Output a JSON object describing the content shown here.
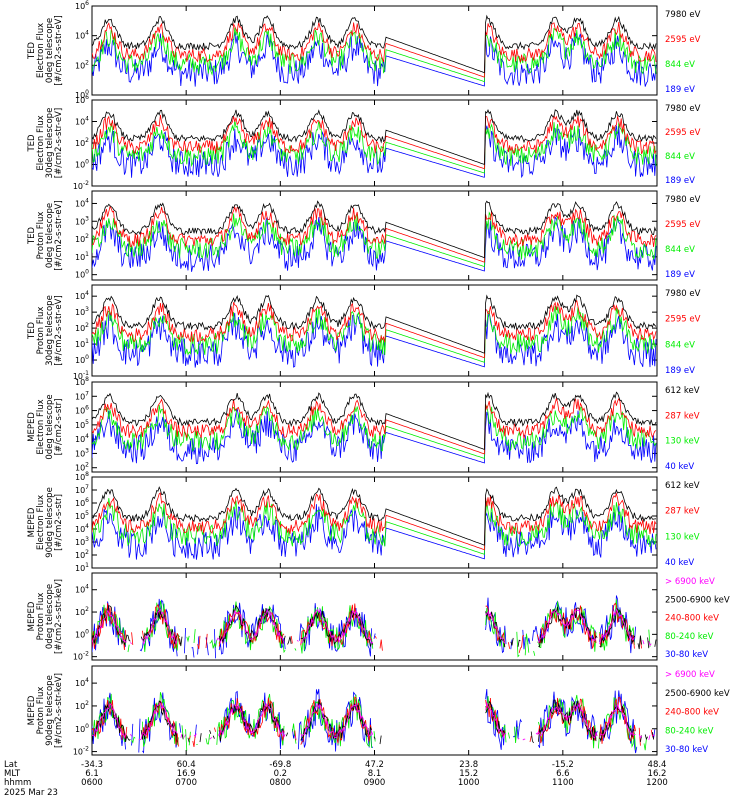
{
  "colors": {
    "black": "#000000",
    "red": "#ff0000",
    "green": "#00ee00",
    "blue": "#0000ff",
    "magenta": "#ff00ff"
  },
  "x_axis": {
    "rows": [
      {
        "label": "Lat",
        "values": [
          "-34.3",
          "60.4",
          "-69.8",
          "47.2",
          "23.8",
          "-15.2",
          "48.4"
        ]
      },
      {
        "label": "MLT",
        "values": [
          "6.1",
          "16.9",
          "0.2",
          "8.1",
          "15.2",
          "6.6",
          "16.2"
        ]
      },
      {
        "label": "hhmm",
        "values": [
          "0600",
          "0700",
          "0800",
          "0900",
          "1000",
          "1100",
          "1200"
        ]
      }
    ],
    "date": "2025 Mar 23",
    "time_range": [
      "0600",
      "1200"
    ]
  },
  "chart_data": [
    {
      "type": "line",
      "ylabel": [
        "TED",
        "Electron Flux",
        "0deg telescope",
        "[#/cm2-s-str-eV]"
      ],
      "yticks": [
        "10^0",
        "10^2",
        "10^4",
        "10^6"
      ],
      "ylog": [
        0,
        6
      ],
      "series": [
        {
          "name": "7980 eV",
          "color": "#000000"
        },
        {
          "name": "2595 eV",
          "color": "#ff0000"
        },
        {
          "name": "844 eV",
          "color": "#00ee00"
        },
        {
          "name": "189 eV",
          "color": "#0000ff"
        }
      ]
    },
    {
      "type": "line",
      "ylabel": [
        "TED",
        "Electron Flux",
        "30deg telescope",
        "[#/cm2-s-str-eV]"
      ],
      "yticks": [
        "10^-2",
        "10^0",
        "10^2",
        "10^4",
        "10^6"
      ],
      "ylog": [
        -2,
        6
      ],
      "series": [
        {
          "name": "7980 eV",
          "color": "#000000"
        },
        {
          "name": "2595 eV",
          "color": "#ff0000"
        },
        {
          "name": "844 eV",
          "color": "#00ee00"
        },
        {
          "name": "189 eV",
          "color": "#0000ff"
        }
      ]
    },
    {
      "type": "line",
      "ylabel": [
        "TED",
        "Proton Flux",
        "0deg telescope",
        "[#/cm2-s-str-eV]"
      ],
      "yticks": [
        "10^0",
        "10^1",
        "10^2",
        "10^3",
        "10^4"
      ],
      "ylog": [
        -0.3,
        4.7
      ],
      "series": [
        {
          "name": "7980 eV",
          "color": "#000000"
        },
        {
          "name": "2595 eV",
          "color": "#ff0000"
        },
        {
          "name": "844 eV",
          "color": "#00ee00"
        },
        {
          "name": "189 eV",
          "color": "#0000ff"
        }
      ]
    },
    {
      "type": "line",
      "ylabel": [
        "TED",
        "Proton Flux",
        "30deg telescope",
        "[#/cm2-s-str-eV]"
      ],
      "yticks": [
        "10^-1",
        "10^0",
        "10^1",
        "10^2",
        "10^3",
        "10^4"
      ],
      "ylog": [
        -1,
        4.7
      ],
      "series": [
        {
          "name": "7980 eV",
          "color": "#000000"
        },
        {
          "name": "2595 eV",
          "color": "#ff0000"
        },
        {
          "name": "844 eV",
          "color": "#00ee00"
        },
        {
          "name": "189 eV",
          "color": "#0000ff"
        }
      ]
    },
    {
      "type": "line",
      "ylabel": [
        "MEPED",
        "Electron Flux",
        "0deg telescope",
        "[#/cm2-s-str]"
      ],
      "yticks": [
        "10^2",
        "10^3",
        "10^4",
        "10^5",
        "10^6",
        "10^7",
        "10^8"
      ],
      "ylog": [
        1.7,
        8
      ],
      "series": [
        {
          "name": "612 keV",
          "color": "#000000"
        },
        {
          "name": "287 keV",
          "color": "#ff0000"
        },
        {
          "name": "130 keV",
          "color": "#00ee00"
        },
        {
          "name": "40 keV",
          "color": "#0000ff"
        }
      ]
    },
    {
      "type": "line",
      "ylabel": [
        "MEPED",
        "Electron Flux",
        "90deg telescope",
        "[#/cm2-s-str]"
      ],
      "yticks": [
        "10^1",
        "10^2",
        "10^3",
        "10^4",
        "10^5",
        "10^6",
        "10^7",
        "10^8"
      ],
      "ylog": [
        1,
        8
      ],
      "series": [
        {
          "name": "612 keV",
          "color": "#000000"
        },
        {
          "name": "287 keV",
          "color": "#ff0000"
        },
        {
          "name": "130 keV",
          "color": "#00ee00"
        },
        {
          "name": "40 keV",
          "color": "#0000ff"
        }
      ]
    },
    {
      "type": "line",
      "ylabel": [
        "MEPED",
        "Proton Flux",
        "0deg telescope",
        "[#/cm2-s-str-keV]"
      ],
      "yticks": [
        "10^-2",
        "10^0",
        "10^2",
        "10^4"
      ],
      "ylog": [
        -2.3,
        5.5
      ],
      "series": [
        {
          "name": "> 6900 keV",
          "color": "#ff00ff"
        },
        {
          "name": "2500-6900 keV",
          "color": "#000000"
        },
        {
          "name": "240-800 keV",
          "color": "#ff0000"
        },
        {
          "name": "80-240 keV",
          "color": "#00ee00"
        },
        {
          "name": "30-80 keV",
          "color": "#0000ff"
        }
      ]
    },
    {
      "type": "line",
      "ylabel": [
        "MEPED",
        "Proton Flux",
        "90deg telescope",
        "[#/cm2-s-str-keV]"
      ],
      "yticks": [
        "10^-2",
        "10^0",
        "10^2",
        "10^4"
      ],
      "ylog": [
        -2.3,
        5.5
      ],
      "series": [
        {
          "name": "> 6900 keV",
          "color": "#ff00ff"
        },
        {
          "name": "2500-6900 keV",
          "color": "#000000"
        },
        {
          "name": "240-800 keV",
          "color": "#ff0000"
        },
        {
          "name": "80-240 keV",
          "color": "#00ee00"
        },
        {
          "name": "30-80 keV",
          "color": "#0000ff"
        }
      ]
    }
  ]
}
